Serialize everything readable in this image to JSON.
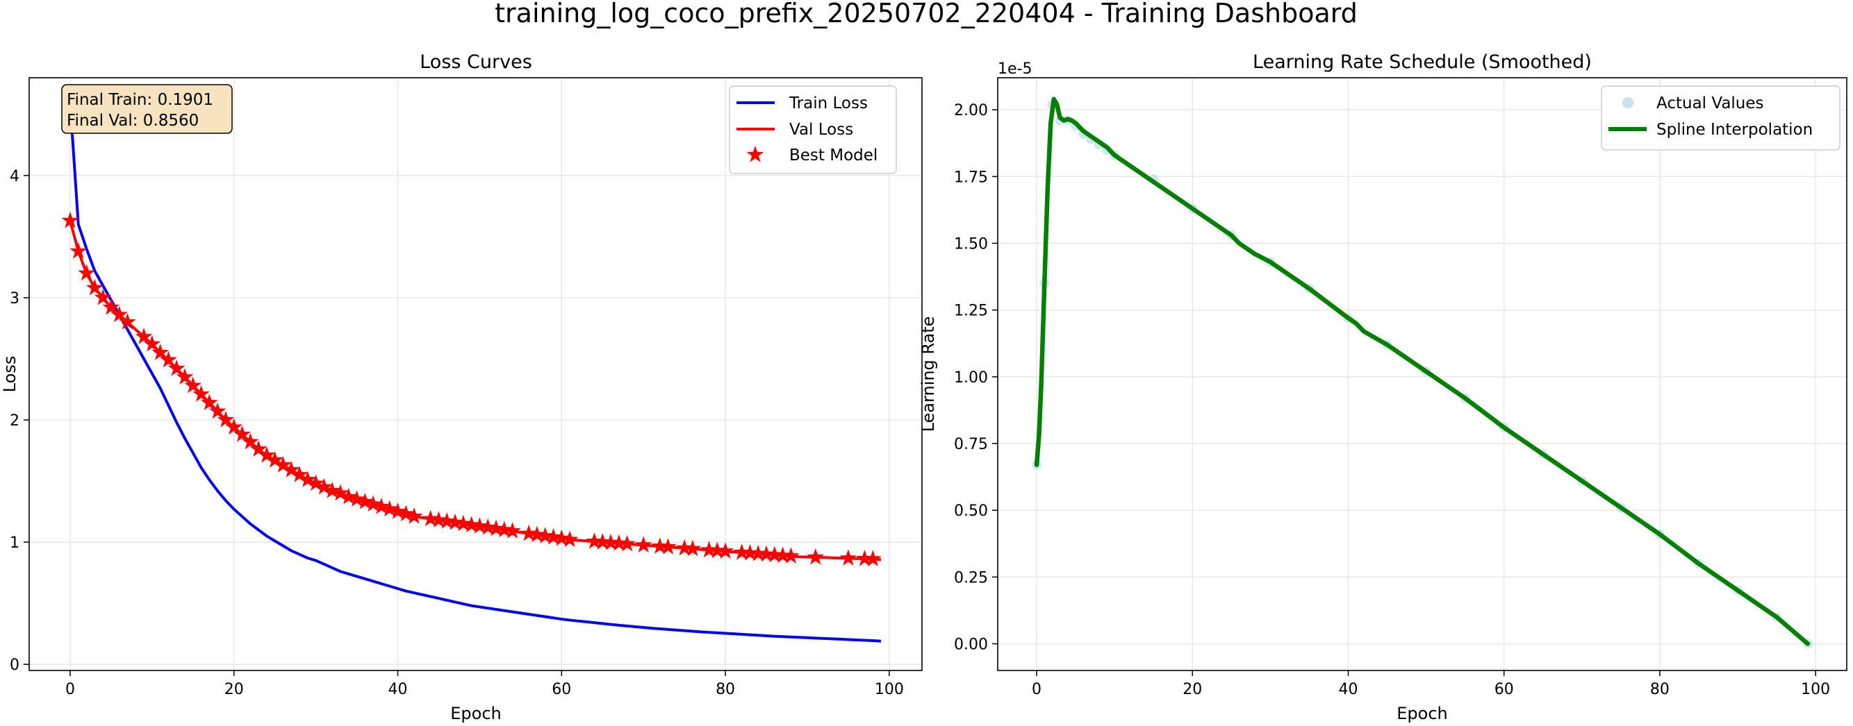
{
  "figure": {
    "suptitle": "training_log_coco_prefix_20250702_220404 - Training Dashboard"
  },
  "colors": {
    "train": "#0000ff",
    "val": "#ff0000",
    "best": "#ff0000",
    "lr_line": "#008000",
    "lr_points": "#add8e6",
    "grid": "#e6e6e6",
    "annot_bg": "#f7e3c0"
  },
  "annotation": {
    "final_train": "Final Train: 0.1901",
    "final_val": "Final Val: 0.8560"
  },
  "chart_data": [
    {
      "type": "line",
      "title": "Loss Curves",
      "xlabel": "Epoch",
      "ylabel": "Loss",
      "xlim": [
        -5,
        104
      ],
      "ylim": [
        -0.05,
        4.8
      ],
      "xticks": [
        0,
        20,
        40,
        60,
        80,
        100
      ],
      "yticks": [
        0,
        1,
        2,
        3,
        4
      ],
      "grid": true,
      "legend": "top-right",
      "x": [
        0,
        1,
        2,
        3,
        4,
        5,
        6,
        7,
        8,
        9,
        10,
        11,
        12,
        13,
        14,
        15,
        16,
        17,
        18,
        19,
        20,
        21,
        22,
        23,
        24,
        25,
        26,
        27,
        28,
        29,
        30,
        31,
        32,
        33,
        34,
        35,
        36,
        37,
        38,
        39,
        40,
        41,
        42,
        43,
        44,
        45,
        46,
        47,
        48,
        49,
        50,
        51,
        52,
        53,
        54,
        55,
        56,
        57,
        58,
        59,
        60,
        61,
        62,
        63,
        64,
        65,
        66,
        67,
        68,
        69,
        70,
        71,
        72,
        73,
        74,
        75,
        76,
        77,
        78,
        79,
        80,
        81,
        82,
        83,
        84,
        85,
        86,
        87,
        88,
        89,
        90,
        91,
        92,
        93,
        94,
        95,
        96,
        97,
        98,
        99
      ],
      "series": [
        {
          "name": "Train Loss",
          "values": [
            4.6,
            3.6,
            3.4,
            3.22,
            3.1,
            2.98,
            2.86,
            2.74,
            2.62,
            2.5,
            2.38,
            2.26,
            2.12,
            1.98,
            1.85,
            1.73,
            1.61,
            1.51,
            1.42,
            1.34,
            1.27,
            1.21,
            1.15,
            1.1,
            1.05,
            1.01,
            0.97,
            0.93,
            0.9,
            0.87,
            0.85,
            0.82,
            0.79,
            0.76,
            0.74,
            0.72,
            0.7,
            0.68,
            0.66,
            0.64,
            0.62,
            0.6,
            0.585,
            0.57,
            0.555,
            0.54,
            0.525,
            0.51,
            0.495,
            0.48,
            0.47,
            0.46,
            0.45,
            0.44,
            0.43,
            0.42,
            0.41,
            0.4,
            0.39,
            0.38,
            0.37,
            0.362,
            0.355,
            0.348,
            0.341,
            0.334,
            0.327,
            0.32,
            0.314,
            0.308,
            0.302,
            0.296,
            0.291,
            0.286,
            0.281,
            0.276,
            0.271,
            0.266,
            0.262,
            0.258,
            0.254,
            0.25,
            0.246,
            0.242,
            0.238,
            0.234,
            0.23,
            0.227,
            0.224,
            0.221,
            0.218,
            0.215,
            0.212,
            0.209,
            0.206,
            0.203,
            0.2,
            0.197,
            0.194,
            0.1901
          ]
        },
        {
          "name": "Val Loss",
          "values": [
            3.63,
            3.38,
            3.2,
            3.08,
            3.0,
            2.92,
            2.86,
            2.8,
            2.74,
            2.68,
            2.62,
            2.55,
            2.49,
            2.42,
            2.35,
            2.28,
            2.21,
            2.14,
            2.07,
            2.0,
            1.94,
            1.88,
            1.82,
            1.76,
            1.71,
            1.67,
            1.63,
            1.59,
            1.55,
            1.51,
            1.48,
            1.45,
            1.42,
            1.4,
            1.37,
            1.35,
            1.33,
            1.31,
            1.29,
            1.27,
            1.25,
            1.23,
            1.21,
            1.2,
            1.19,
            1.18,
            1.17,
            1.16,
            1.15,
            1.14,
            1.13,
            1.12,
            1.11,
            1.1,
            1.09,
            1.08,
            1.07,
            1.06,
            1.05,
            1.04,
            1.03,
            1.02,
            1.015,
            1.01,
            1.005,
            1.0,
            0.995,
            0.99,
            0.985,
            0.98,
            0.975,
            0.97,
            0.965,
            0.96,
            0.955,
            0.95,
            0.945,
            0.94,
            0.935,
            0.93,
            0.925,
            0.92,
            0.915,
            0.91,
            0.905,
            0.9,
            0.895,
            0.89,
            0.885,
            0.88,
            0.878,
            0.876,
            0.874,
            0.872,
            0.87,
            0.868,
            0.866,
            0.864,
            0.862,
            0.856
          ]
        },
        {
          "name": "Best Model",
          "style": "markers",
          "x": [
            0,
            1,
            2,
            3,
            4,
            5,
            6,
            7,
            9,
            10,
            11,
            12,
            13,
            14,
            15,
            16,
            17,
            18,
            19,
            20,
            21,
            22,
            23,
            24,
            25,
            26,
            27,
            28,
            29,
            30,
            31,
            32,
            33,
            34,
            35,
            36,
            37,
            38,
            39,
            40,
            41,
            42,
            44,
            45,
            46,
            47,
            48,
            49,
            50,
            51,
            52,
            53,
            54,
            56,
            57,
            58,
            59,
            60,
            61,
            64,
            65,
            66,
            67,
            68,
            70,
            72,
            73,
            75,
            76,
            78,
            79,
            80,
            82,
            83,
            84,
            85,
            86,
            87,
            88,
            91,
            95,
            97,
            98
          ],
          "values": [
            3.63,
            3.38,
            3.2,
            3.08,
            3.0,
            2.92,
            2.86,
            2.8,
            2.68,
            2.62,
            2.55,
            2.49,
            2.42,
            2.35,
            2.28,
            2.21,
            2.14,
            2.07,
            2.0,
            1.94,
            1.88,
            1.82,
            1.76,
            1.71,
            1.67,
            1.63,
            1.59,
            1.55,
            1.51,
            1.48,
            1.45,
            1.42,
            1.4,
            1.37,
            1.35,
            1.33,
            1.31,
            1.29,
            1.27,
            1.25,
            1.23,
            1.21,
            1.19,
            1.18,
            1.17,
            1.16,
            1.15,
            1.14,
            1.13,
            1.12,
            1.11,
            1.1,
            1.09,
            1.07,
            1.06,
            1.05,
            1.04,
            1.03,
            1.02,
            1.005,
            1.0,
            0.995,
            0.99,
            0.985,
            0.975,
            0.965,
            0.96,
            0.95,
            0.945,
            0.935,
            0.93,
            0.925,
            0.915,
            0.91,
            0.905,
            0.9,
            0.895,
            0.89,
            0.885,
            0.876,
            0.868,
            0.864,
            0.862
          ]
        }
      ]
    },
    {
      "type": "line",
      "title": "Learning Rate Schedule (Smoothed)",
      "xlabel": "Epoch",
      "ylabel": "Learning Rate",
      "offset_label": "1e-5",
      "xlim": [
        -5,
        104
      ],
      "ylim": [
        -0.1,
        2.12
      ],
      "xticks": [
        0,
        20,
        40,
        60,
        80,
        100
      ],
      "yticks": [
        0.0,
        0.25,
        0.5,
        0.75,
        1.0,
        1.25,
        1.5,
        1.75,
        2.0
      ],
      "ytick_labels": [
        "0.00",
        "0.25",
        "0.50",
        "0.75",
        "1.00",
        "1.25",
        "1.50",
        "1.75",
        "2.00"
      ],
      "grid": true,
      "legend": "top-right",
      "series": [
        {
          "name": "Actual Values",
          "style": "markers",
          "x": [
            0,
            1,
            2,
            3,
            4,
            5,
            6,
            7,
            8,
            9,
            10,
            15,
            20,
            25,
            30,
            35,
            40,
            45,
            50,
            55,
            60,
            65,
            70,
            75,
            80,
            85,
            90,
            95,
            99
          ],
          "values": [
            0.67,
            1.35,
            2.02,
            1.96,
            1.96,
            1.94,
            1.91,
            1.89,
            1.87,
            1.85,
            1.83,
            1.74,
            1.63,
            1.53,
            1.43,
            1.33,
            1.22,
            1.12,
            1.02,
            0.92,
            0.81,
            0.71,
            0.61,
            0.51,
            0.41,
            0.3,
            0.2,
            0.1,
            0.0
          ]
        },
        {
          "name": "Spline Interpolation",
          "x": [
            0,
            0.3,
            0.6,
            1,
            1.4,
            1.8,
            2.2,
            2.6,
            3,
            3.5,
            4,
            4.5,
            5,
            6,
            7,
            8,
            9,
            10,
            12,
            14,
            16,
            18,
            20,
            22,
            24,
            25,
            26,
            28,
            30,
            35,
            40,
            41,
            42,
            45,
            50,
            55,
            60,
            65,
            70,
            75,
            80,
            85,
            90,
            95,
            99
          ],
          "values": [
            0.67,
            0.78,
            0.98,
            1.35,
            1.7,
            1.95,
            2.04,
            2.02,
            1.97,
            1.96,
            1.965,
            1.96,
            1.95,
            1.92,
            1.9,
            1.88,
            1.86,
            1.83,
            1.79,
            1.75,
            1.71,
            1.67,
            1.63,
            1.59,
            1.55,
            1.53,
            1.5,
            1.46,
            1.43,
            1.33,
            1.22,
            1.2,
            1.17,
            1.12,
            1.02,
            0.92,
            0.81,
            0.71,
            0.61,
            0.51,
            0.41,
            0.3,
            0.2,
            0.1,
            0.0
          ]
        }
      ]
    }
  ]
}
